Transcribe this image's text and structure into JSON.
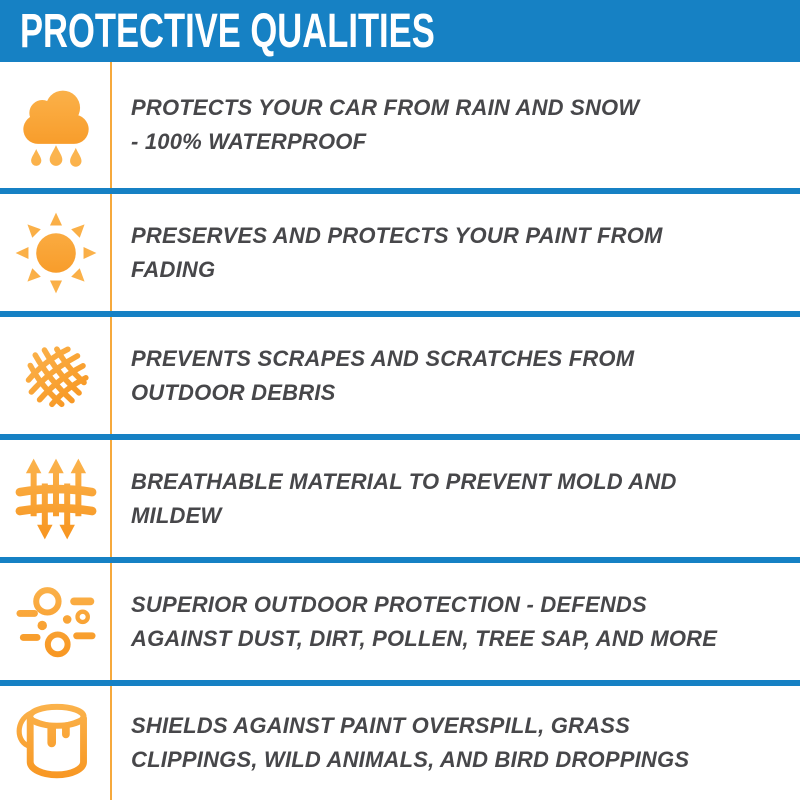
{
  "header": {
    "title": "PROTECTIVE QUALITIES"
  },
  "colors": {
    "header_bg": "#1681C4",
    "divider_blue": "#1681C4",
    "vertical_rule_orange": "#F6A93C",
    "icon_gradient_top": "#FBB44E",
    "icon_gradient_bottom": "#F7941E",
    "body_text": "#47474A",
    "header_text": "#FFFFFF",
    "background": "#FFFFFF"
  },
  "rows": [
    {
      "icon": "rain-cloud-icon",
      "lines": [
        "PROTECTS YOUR CAR FROM RAIN AND SNOW",
        "- 100% WATERPROOF"
      ]
    },
    {
      "icon": "sun-icon",
      "lines": [
        "PRESERVES AND PROTECTS YOUR PAINT FROM",
        "FADING"
      ]
    },
    {
      "icon": "net-icon",
      "lines": [
        "PREVENTS SCRAPES AND SCRATCHES FROM",
        "OUTDOOR DEBRIS"
      ]
    },
    {
      "icon": "breathable-icon",
      "lines": [
        "BREATHABLE MATERIAL TO PREVENT MOLD AND",
        "MILDEW"
      ]
    },
    {
      "icon": "dust-icon",
      "lines": [
        "SUPERIOR OUTDOOR PROTECTION - DEFENDS",
        "AGAINST DUST, DIRT, POLLEN, TREE SAP, AND MORE"
      ]
    },
    {
      "icon": "paint-bucket-icon",
      "lines": [
        "SHIELDS AGAINST PAINT OVERSPILL, GRASS",
        "CLIPPINGS, WILD ANIMALS, AND BIRD DROPPINGS"
      ]
    }
  ]
}
